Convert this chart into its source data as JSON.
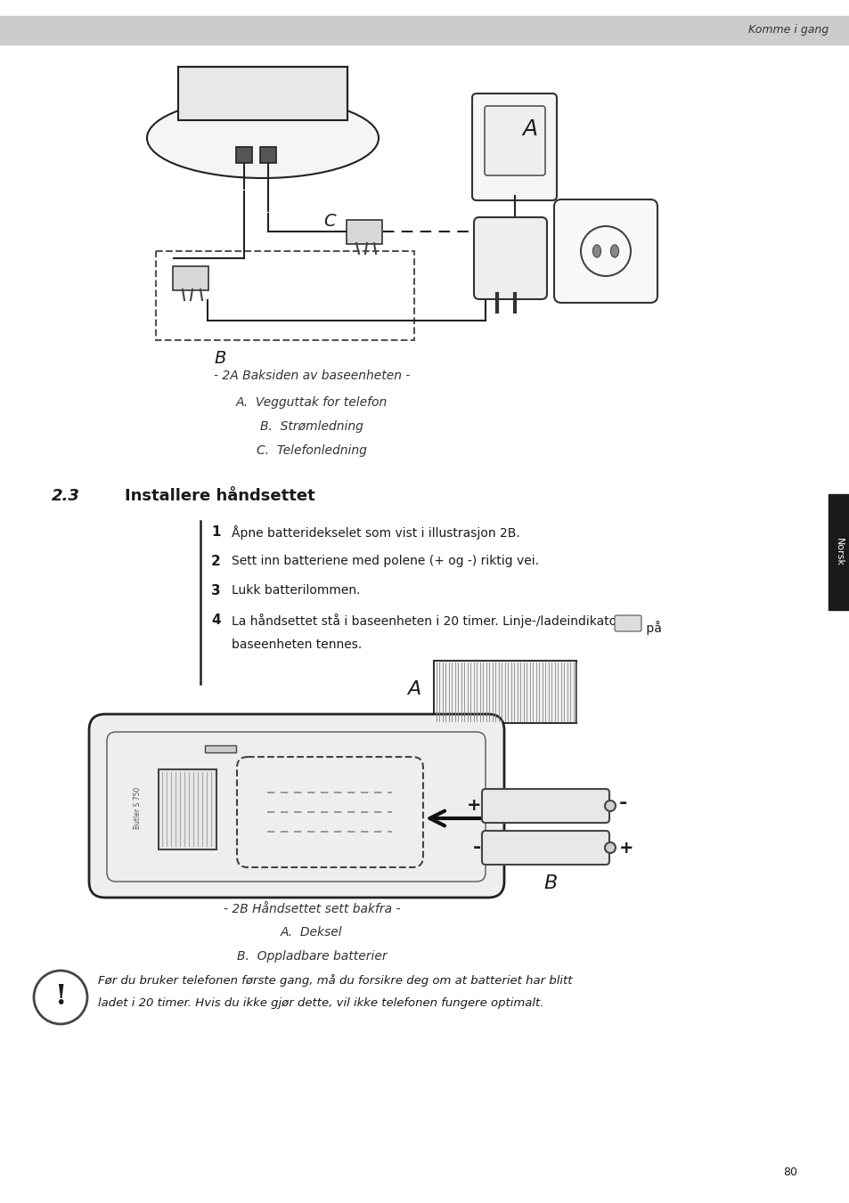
{
  "page_bg": "#ffffff",
  "header_bg": "#cccccc",
  "header_text": "Komme i gang",
  "header_text_color": "#333333",
  "page_number": "80",
  "sidebar_color": "#1a1a1a",
  "sidebar_text": "Norsk",
  "caption1": "- 2A Baksiden av baseenheten -",
  "caption1a": "A.  Vegguttak for telefon",
  "caption1b": "B.  Strømledning",
  "caption1c": "C.  Telefonledning",
  "section_num": "2.3",
  "section_title": "Installere håndsettet",
  "step1_num": "1",
  "step1_text": "Åpne batteridekselet som vist i illustrasjon 2B.",
  "step2_num": "2",
  "step2_text": "Sett inn batteriene med polene (+ og -) riktig vei.",
  "step3_num": "3",
  "step3_text": "Lukk batterilommen.",
  "step4_num": "4",
  "step4_text": "La håndsettet stå i baseenheten i 20 timer. Linje-/ladeindikatoren",
  "step4_suffix": " på",
  "step4_cont": "baseenheten tennes.",
  "caption2": "- 2B Håndsettet sett bakfra -",
  "caption2a": "A.  Deksel",
  "caption2b": "B.  Oppladbare batterier",
  "warning_text1": "Før du bruker telefonen første gang, må du forsikre deg om at batteriet har blitt",
  "warning_text2": "ladet i 20 timer. Hvis du ikke gjør dette, vil ikke telefonen fungere optimalt.",
  "text_color": "#1a1a1a",
  "italic_color": "#333333"
}
